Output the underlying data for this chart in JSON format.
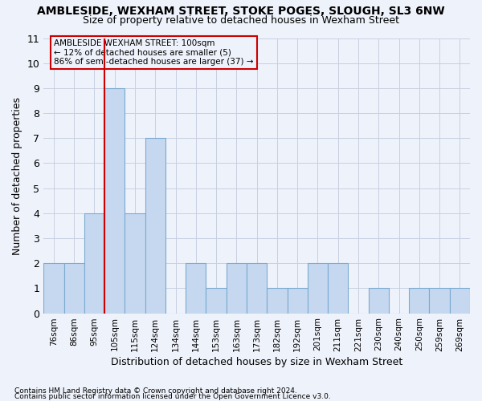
{
  "title": "AMBLESIDE, WEXHAM STREET, STOKE POGES, SLOUGH, SL3 6NW",
  "subtitle": "Size of property relative to detached houses in Wexham Street",
  "xlabel": "Distribution of detached houses by size in Wexham Street",
  "ylabel": "Number of detached properties",
  "footer1": "Contains HM Land Registry data © Crown copyright and database right 2024.",
  "footer2": "Contains public sector information licensed under the Open Government Licence v3.0.",
  "annotation_line1": "AMBLESIDE WEXHAM STREET: 100sqm",
  "annotation_line2": "← 12% of detached houses are smaller (5)",
  "annotation_line3": "86% of semi-detached houses are larger (37) →",
  "categories": [
    "76sqm",
    "86sqm",
    "95sqm",
    "105sqm",
    "115sqm",
    "124sqm",
    "134sqm",
    "144sqm",
    "153sqm",
    "163sqm",
    "173sqm",
    "182sqm",
    "192sqm",
    "201sqm",
    "211sqm",
    "221sqm",
    "230sqm",
    "240sqm",
    "250sqm",
    "259sqm",
    "269sqm"
  ],
  "values": [
    2,
    2,
    4,
    9,
    4,
    7,
    0,
    2,
    1,
    2,
    2,
    1,
    1,
    2,
    2,
    0,
    1,
    0,
    1,
    1,
    1
  ],
  "bar_color": "#c5d8f0",
  "bar_edge_color": "#7aaad0",
  "vline_x_index": 3,
  "vline_color": "#cc0000",
  "annotation_box_edge_color": "#cc0000",
  "background_color": "#eef2fb",
  "grid_color": "#c8cfe0",
  "ylim": [
    0,
    11
  ],
  "yticks": [
    0,
    1,
    2,
    3,
    4,
    5,
    6,
    7,
    8,
    9,
    10,
    11
  ],
  "title_fontsize": 10,
  "subtitle_fontsize": 9
}
